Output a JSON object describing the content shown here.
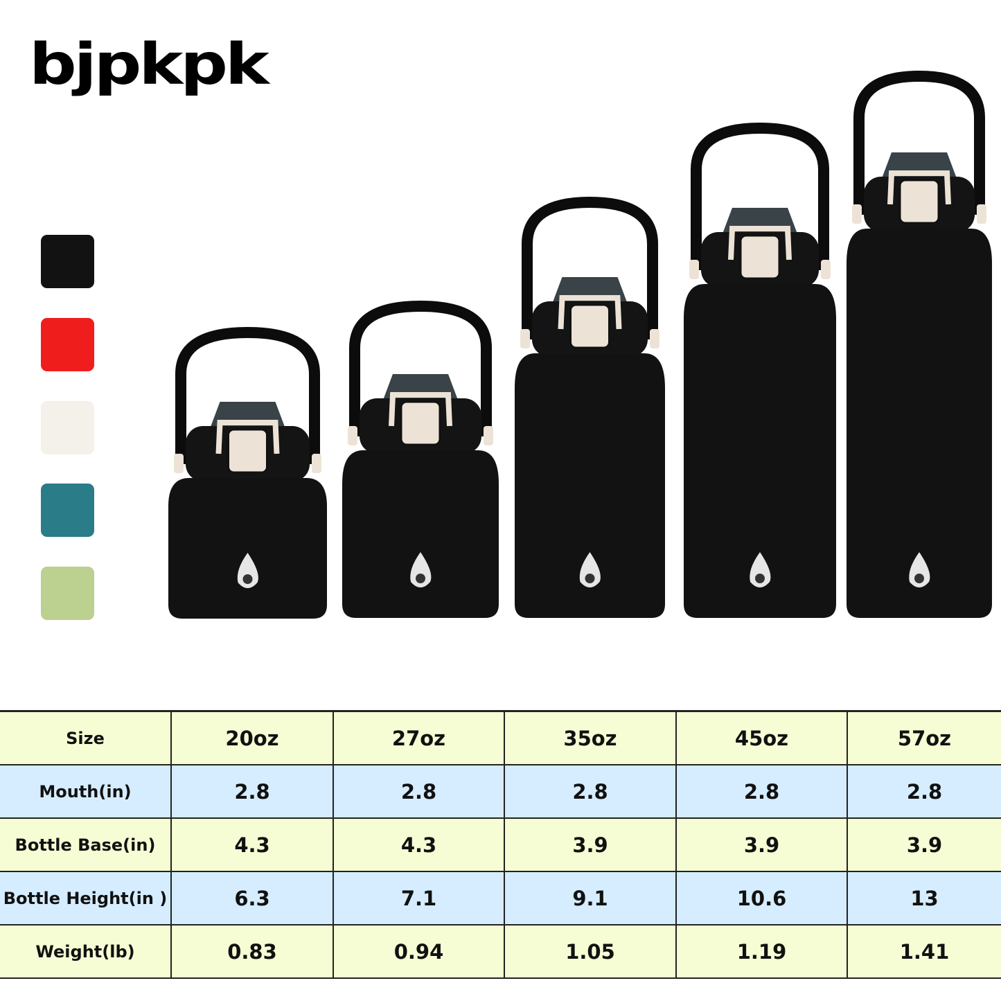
{
  "brand": {
    "logo_text": "bjpkpk"
  },
  "color_options": [
    {
      "name": "black",
      "hex": "#121212"
    },
    {
      "name": "red",
      "hex": "#ef1e1c"
    },
    {
      "name": "cream",
      "hex": "#f4f1ea"
    },
    {
      "name": "teal",
      "hex": "#2a7c88"
    },
    {
      "name": "green",
      "hex": "#bcd08f"
    }
  ],
  "bottle_color": "#121212",
  "accent_cream": "#ece3d6",
  "table": {
    "headers": [
      "Size",
      "20oz",
      "27oz",
      "35oz",
      "45oz",
      "57oz"
    ],
    "rows": [
      {
        "label": "Mouth(in)",
        "values": [
          "2.8",
          "2.8",
          "2.8",
          "2.8",
          "2.8"
        ]
      },
      {
        "label": "Bottle Base(in)",
        "values": [
          "4.3",
          "4.3",
          "3.9",
          "3.9",
          "3.9"
        ]
      },
      {
        "label": "Bottle Height(in )",
        "values": [
          "6.3",
          "7.1",
          "9.1",
          "10.6",
          "13"
        ]
      },
      {
        "label": "Weight(lb)",
        "values": [
          "0.83",
          "0.94",
          "1.05",
          "1.19",
          "1.41"
        ]
      }
    ]
  }
}
